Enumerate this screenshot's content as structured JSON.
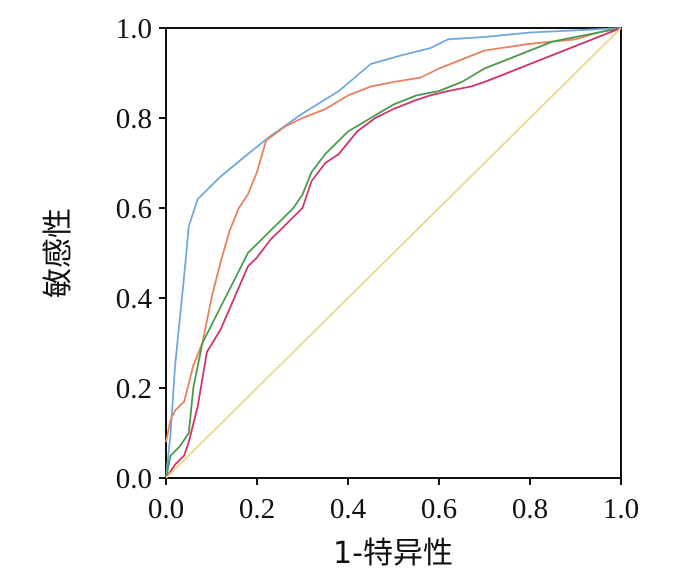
{
  "chart_data": {
    "type": "line",
    "xlabel": "1-特异性",
    "ylabel": "敏感性",
    "xlim": [
      0,
      1
    ],
    "ylim": [
      0,
      1
    ],
    "grid": false,
    "x_ticks": [
      "0.0",
      "0.2",
      "0.4",
      "0.6",
      "0.8",
      "1.0"
    ],
    "y_ticks": [
      "0.0",
      "0.2",
      "0.4",
      "0.6",
      "0.8",
      "1.0"
    ],
    "series": [
      {
        "color": "#6fa8dc",
        "x": [
          0,
          0.01,
          0.02,
          0.04,
          0.05,
          0.07,
          0.12,
          0.18,
          0.23,
          0.3,
          0.38,
          0.45,
          0.52,
          0.58,
          0.62,
          0.7,
          0.8,
          0.9,
          1.0
        ],
        "y": [
          0,
          0.1,
          0.25,
          0.45,
          0.56,
          0.62,
          0.67,
          0.72,
          0.76,
          0.81,
          0.86,
          0.92,
          0.94,
          0.955,
          0.975,
          0.98,
          0.99,
          0.995,
          1.0
        ]
      },
      {
        "color": "#e8805f",
        "x": [
          0,
          0.01,
          0.02,
          0.04,
          0.06,
          0.08,
          0.1,
          0.12,
          0.14,
          0.16,
          0.18,
          0.2,
          0.22,
          0.26,
          0.3,
          0.35,
          0.4,
          0.45,
          0.5,
          0.56,
          0.6,
          0.65,
          0.7,
          0.8,
          0.9,
          0.95,
          1.0
        ],
        "y": [
          0.08,
          0.13,
          0.15,
          0.17,
          0.25,
          0.3,
          0.4,
          0.48,
          0.55,
          0.6,
          0.63,
          0.68,
          0.75,
          0.78,
          0.8,
          0.82,
          0.85,
          0.87,
          0.88,
          0.89,
          0.91,
          0.93,
          0.95,
          0.965,
          0.975,
          0.99,
          1.0
        ]
      },
      {
        "color": "#4a9a4a",
        "x": [
          0,
          0.01,
          0.03,
          0.05,
          0.06,
          0.08,
          0.1,
          0.12,
          0.15,
          0.18,
          0.2,
          0.23,
          0.25,
          0.28,
          0.3,
          0.32,
          0.35,
          0.38,
          0.4,
          0.45,
          0.5,
          0.55,
          0.6,
          0.65,
          0.7,
          0.75,
          0.8,
          0.85,
          0.9,
          0.95,
          1.0
        ],
        "y": [
          0,
          0.05,
          0.07,
          0.1,
          0.2,
          0.3,
          0.34,
          0.38,
          0.44,
          0.5,
          0.52,
          0.55,
          0.57,
          0.6,
          0.63,
          0.68,
          0.72,
          0.75,
          0.77,
          0.8,
          0.83,
          0.85,
          0.86,
          0.88,
          0.91,
          0.93,
          0.95,
          0.97,
          0.98,
          0.99,
          1.0
        ]
      },
      {
        "color": "#d1336e",
        "x": [
          0,
          0.02,
          0.04,
          0.05,
          0.07,
          0.09,
          0.12,
          0.15,
          0.18,
          0.2,
          0.23,
          0.25,
          0.28,
          0.3,
          0.32,
          0.35,
          0.38,
          0.42,
          0.46,
          0.5,
          0.55,
          0.58,
          0.62,
          0.67,
          0.7,
          0.75,
          0.8,
          0.85,
          0.9,
          0.95,
          1.0
        ],
        "y": [
          0,
          0.03,
          0.05,
          0.08,
          0.16,
          0.28,
          0.33,
          0.4,
          0.47,
          0.49,
          0.53,
          0.55,
          0.58,
          0.6,
          0.66,
          0.7,
          0.72,
          0.77,
          0.8,
          0.82,
          0.84,
          0.85,
          0.86,
          0.87,
          0.88,
          0.9,
          0.92,
          0.94,
          0.96,
          0.98,
          1.0
        ]
      },
      {
        "color": "#e8d98a",
        "x": [
          0,
          1
        ],
        "y": [
          0,
          1
        ]
      }
    ]
  }
}
